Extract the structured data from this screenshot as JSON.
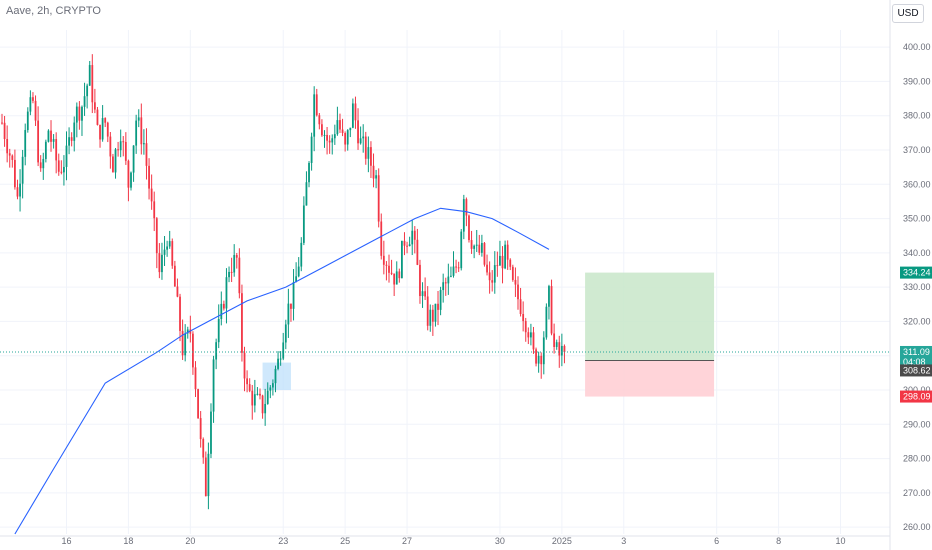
{
  "header": {
    "title": "Aave, 2h, CRYPTO"
  },
  "currency_button": "USD",
  "chart_data": {
    "type": "candlestick",
    "symbol": "Aave",
    "interval": "2h",
    "exchange": "CRYPTO",
    "currency": "USD",
    "ylim": [
      258,
      405
    ],
    "y_ticks": [
      260,
      270,
      280,
      290,
      300,
      310,
      320,
      330,
      340,
      350,
      360,
      370,
      380,
      390,
      400
    ],
    "x_ticks": [
      {
        "label": "16",
        "i": 25
      },
      {
        "label": "18",
        "i": 49
      },
      {
        "label": "20",
        "i": 73
      },
      {
        "label": "23",
        "i": 109
      },
      {
        "label": "25",
        "i": 133
      },
      {
        "label": "27",
        "i": 157
      },
      {
        "label": "30",
        "i": 193
      },
      {
        "label": "2025",
        "i": 217
      },
      {
        "label": "3",
        "i": 241
      },
      {
        "label": "6",
        "i": 277
      },
      {
        "label": "8",
        "i": 301
      },
      {
        "label": "10",
        "i": 325
      }
    ],
    "x_count": 336,
    "anchors": [
      [
        0,
        378
      ],
      [
        4,
        366
      ],
      [
        6,
        356
      ],
      [
        9,
        378
      ],
      [
        12,
        384
      ],
      [
        15,
        362
      ],
      [
        18,
        376
      ],
      [
        22,
        364
      ],
      [
        25,
        368
      ],
      [
        28,
        380
      ],
      [
        31,
        383
      ],
      [
        34,
        392
      ],
      [
        37,
        375
      ],
      [
        40,
        378
      ],
      [
        43,
        366
      ],
      [
        46,
        376
      ],
      [
        49,
        360
      ],
      [
        52,
        379
      ],
      [
        55,
        372
      ],
      [
        58,
        353
      ],
      [
        61,
        334
      ],
      [
        64,
        345
      ],
      [
        67,
        330
      ],
      [
        70,
        312
      ],
      [
        73,
        317
      ],
      [
        75,
        302
      ],
      [
        77,
        284
      ],
      [
        79,
        271
      ],
      [
        82,
        310
      ],
      [
        85,
        322
      ],
      [
        88,
        336
      ],
      [
        91,
        338
      ],
      [
        93,
        312
      ],
      [
        95,
        300
      ],
      [
        98,
        297
      ],
      [
        101,
        295
      ],
      [
        104,
        301
      ],
      [
        107,
        308
      ],
      [
        110,
        322
      ],
      [
        113,
        328
      ],
      [
        116,
        342
      ],
      [
        119,
        368
      ],
      [
        121,
        386
      ],
      [
        124,
        377
      ],
      [
        127,
        371
      ],
      [
        130,
        379
      ],
      [
        133,
        370
      ],
      [
        136,
        382
      ],
      [
        139,
        372
      ],
      [
        142,
        368
      ],
      [
        145,
        362
      ],
      [
        147,
        342
      ],
      [
        150,
        336
      ],
      [
        153,
        332
      ],
      [
        156,
        344
      ],
      [
        159,
        346
      ],
      [
        162,
        330
      ],
      [
        165,
        321
      ],
      [
        168,
        322
      ],
      [
        171,
        330
      ],
      [
        174,
        332
      ],
      [
        177,
        338
      ],
      [
        179,
        358
      ],
      [
        181,
        346
      ],
      [
        184,
        340
      ],
      [
        186,
        340
      ],
      [
        189,
        330
      ],
      [
        192,
        337
      ],
      [
        195,
        339
      ],
      [
        198,
        330
      ],
      [
        201,
        325
      ],
      [
        204,
        318
      ],
      [
        206,
        310
      ],
      [
        209,
        311
      ],
      [
        212,
        327
      ],
      [
        214,
        312
      ],
      [
        216,
        310
      ],
      [
        218,
        312
      ]
    ],
    "series": [
      {
        "name": "",
        "type": "moving_average",
        "color": "#2962ff",
        "x": [
          5,
          20,
          40,
          60,
          70,
          80,
          95,
          110,
          125,
          140,
          150,
          160,
          170,
          180,
          190,
          200,
          212
        ],
        "values": [
          258,
          277,
          302,
          311,
          316,
          320,
          326,
          330,
          336,
          342,
          346,
          350,
          353,
          352,
          350,
          346,
          341
        ]
      }
    ],
    "position": {
      "entry": 308.62,
      "target": 334.24,
      "stop": 298.09,
      "x_start": 226,
      "x_end": 276
    },
    "current_price": 311.09,
    "countdown": "04:08",
    "highlight_box": {
      "x_start": 101,
      "x_end": 112,
      "y_low": 300,
      "y_high": 308
    },
    "colors": {
      "up": "#089981",
      "down": "#f23645",
      "ma": "#2962ff",
      "profit_zone": "#c8e6c9",
      "loss_zone": "#ffcdd2",
      "target_tag": "#089981",
      "stop_tag": "#f23645",
      "entry_tag": "#4a4a4a",
      "current_tag": "#26a69a",
      "grid": "#f0f3fa",
      "axis_text": "#6a6d78",
      "highlight": "#bbdefb"
    }
  }
}
